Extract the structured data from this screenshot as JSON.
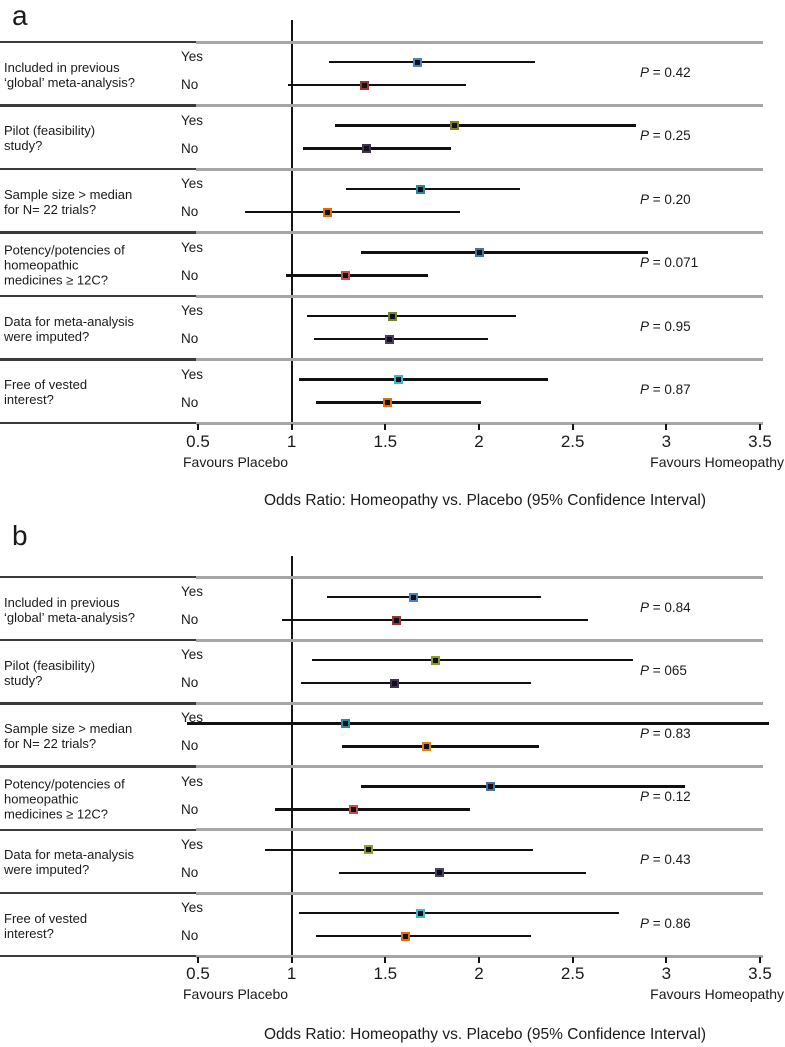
{
  "figure": {
    "row_labels": {
      "yes": "Yes",
      "no": "No"
    },
    "colors": {
      "ci_line": "#111111",
      "marker_fill": "#111111",
      "separator_grey": "#a6a6a6",
      "separator_dark": "#3b3b3b",
      "reference_line": "#141414",
      "text": "#1a1a1a"
    }
  },
  "chart_data": [
    {
      "type": "scatter",
      "subtype": "forest-plot",
      "panel_label": "a",
      "xlabel": "Odds Ratio: Homeopathy vs. Placebo (95% Confidence Interval)",
      "x_ticks": [
        "0.5",
        "1",
        "1.5",
        "2",
        "2.5",
        "3",
        "3.5"
      ],
      "x_tick_values": [
        0.5,
        1,
        1.5,
        2,
        2.5,
        3,
        3.5
      ],
      "xlim": [
        0.5,
        3.5
      ],
      "reference_line": 1,
      "axis_left_label": "Favours Placebo",
      "axis_right_label": "Favours Homeopathy",
      "grid": false,
      "groups": [
        {
          "question": [
            "Included in previous",
            "‘global’ meta-analysis?"
          ],
          "p_value": "P = 0.42",
          "yes": {
            "or": 1.67,
            "ci_low": 1.2,
            "ci_high": 2.3,
            "marker_color": "#4f81bd"
          },
          "no": {
            "or": 1.39,
            "ci_low": 0.98,
            "ci_high": 1.93,
            "marker_color": "#943634"
          }
        },
        {
          "question": [
            "Pilot (feasibility)",
            "study?"
          ],
          "p_value": "P = 0.25",
          "yes": {
            "or": 1.87,
            "ci_low": 1.23,
            "ci_high": 2.84,
            "marker_color": "#827d2b"
          },
          "no": {
            "or": 1.4,
            "ci_low": 1.06,
            "ci_high": 1.85,
            "marker_color": "#403152"
          }
        },
        {
          "question": [
            "Sample size > median",
            "for N= 22 trials?"
          ],
          "p_value": "P = 0.20",
          "yes": {
            "or": 1.69,
            "ci_low": 1.29,
            "ci_high": 2.22,
            "marker_color": "#31849b"
          },
          "no": {
            "or": 1.19,
            "ci_low": 0.75,
            "ci_high": 1.9,
            "marker_color": "#e36c0a"
          }
        },
        {
          "question": [
            "Potency/potencies of",
            "homeopathic",
            "medicines ≥ 12C?"
          ],
          "p_value": "P = 0.071",
          "yes": {
            "or": 2.0,
            "ci_low": 1.37,
            "ci_high": 2.9,
            "marker_color": "#4273a8"
          },
          "no": {
            "or": 1.29,
            "ci_low": 0.97,
            "ci_high": 1.73,
            "marker_color": "#c0504d"
          }
        },
        {
          "question": [
            "Data for meta-analysis",
            "were imputed?"
          ],
          "p_value": "P = 0.95",
          "yes": {
            "or": 1.54,
            "ci_low": 1.08,
            "ci_high": 2.2,
            "marker_color": "#70862c"
          },
          "no": {
            "or": 1.52,
            "ci_low": 1.12,
            "ci_high": 2.05,
            "marker_color": "#4a3b63"
          }
        },
        {
          "question": [
            "Free of vested",
            "interest?"
          ],
          "p_value": "P = 0.87",
          "yes": {
            "or": 1.57,
            "ci_low": 1.04,
            "ci_high": 2.37,
            "marker_color": "#3fb4cc"
          },
          "no": {
            "or": 1.51,
            "ci_low": 1.13,
            "ci_high": 2.01,
            "marker_color": "#e36c0a"
          }
        }
      ]
    },
    {
      "type": "scatter",
      "subtype": "forest-plot",
      "panel_label": "b",
      "xlabel": "Odds Ratio: Homeopathy vs. Placebo (95% Confidence Interval)",
      "x_ticks": [
        "0.5",
        "1",
        "1.5",
        "2",
        "2.5",
        "3",
        "3.5"
      ],
      "x_tick_values": [
        0.5,
        1,
        1.5,
        2,
        2.5,
        3,
        3.5
      ],
      "xlim": [
        0.5,
        3.5
      ],
      "reference_line": 1,
      "axis_left_label": "Favours Placebo",
      "axis_right_label": "Favours Homeopathy",
      "grid": false,
      "groups": [
        {
          "question": [
            "Included in previous",
            "‘global’ meta-analysis?"
          ],
          "p_value": "P = 0.84",
          "yes": {
            "or": 1.65,
            "ci_low": 1.19,
            "ci_high": 2.33,
            "marker_color": "#4f81bd"
          },
          "no": {
            "or": 1.56,
            "ci_low": 0.95,
            "ci_high": 2.58,
            "marker_color": "#943634"
          }
        },
        {
          "question": [
            "Pilot (feasibility)",
            "study?"
          ],
          "p_value": "P = 065",
          "yes": {
            "or": 1.77,
            "ci_low": 1.11,
            "ci_high": 2.82,
            "marker_color": "#8a9a30"
          },
          "no": {
            "or": 1.55,
            "ci_low": 1.05,
            "ci_high": 2.28,
            "marker_color": "#403152"
          }
        },
        {
          "question": [
            "Sample size > median",
            "for N= 22 trials?"
          ],
          "p_value": "P = 0.83",
          "yes": {
            "or": 1.29,
            "ci_low": 0.44,
            "ci_high": 3.55,
            "marker_color": "#31849b"
          },
          "no": {
            "or": 1.72,
            "ci_low": 1.27,
            "ci_high": 2.32,
            "marker_color": "#e08214"
          }
        },
        {
          "question": [
            "Potency/potencies of",
            "homeopathic",
            "medicines ≥ 12C?"
          ],
          "p_value": "P = 0.12",
          "yes": {
            "or": 2.06,
            "ci_low": 1.37,
            "ci_high": 3.1,
            "marker_color": "#4273a8"
          },
          "no": {
            "or": 1.33,
            "ci_low": 0.91,
            "ci_high": 1.95,
            "marker_color": "#c0504d"
          }
        },
        {
          "question": [
            "Data for meta-analysis",
            "were imputed?"
          ],
          "p_value": "P = 0.43",
          "yes": {
            "or": 1.41,
            "ci_low": 0.86,
            "ci_high": 2.29,
            "marker_color": "#8aa02f"
          },
          "no": {
            "or": 1.79,
            "ci_low": 1.25,
            "ci_high": 2.57,
            "marker_color": "#4a3f6f"
          }
        },
        {
          "question": [
            "Free of vested",
            "interest?"
          ],
          "p_value": "P = 0.86",
          "yes": {
            "or": 1.69,
            "ci_low": 1.04,
            "ci_high": 2.75,
            "marker_color": "#3fb4cc"
          },
          "no": {
            "or": 1.61,
            "ci_low": 1.13,
            "ci_high": 2.28,
            "marker_color": "#e36c0a"
          }
        }
      ]
    }
  ]
}
